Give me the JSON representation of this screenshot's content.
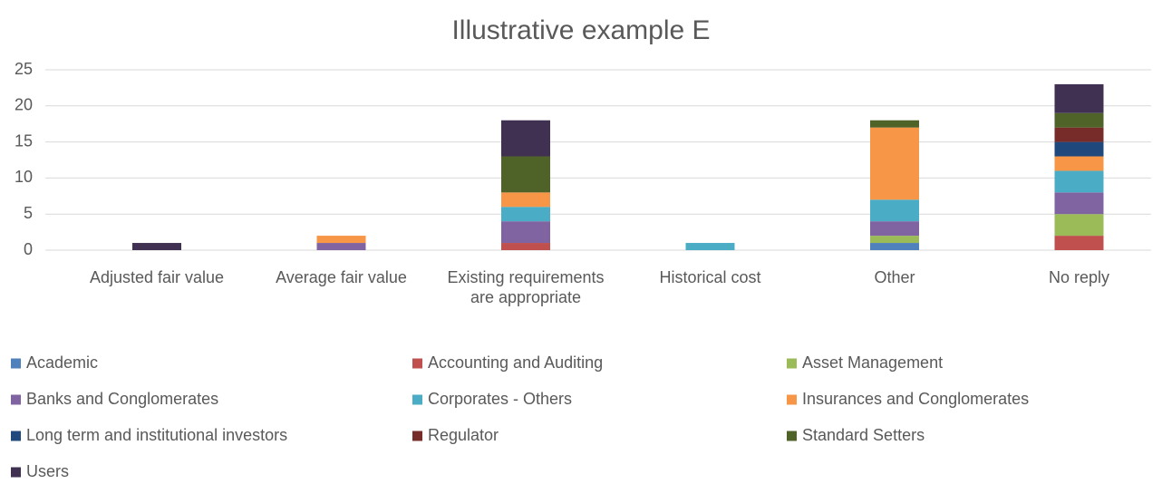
{
  "chart_data": {
    "type": "stacked_bar",
    "title": "Illustrative example E",
    "categories": [
      "Adjusted fair value",
      "Average fair value",
      "Existing requirements are appropriate",
      "Historical cost",
      "Other",
      "No reply"
    ],
    "series": [
      {
        "name": "Academic",
        "color": "#4f81bd",
        "values": [
          0,
          0,
          0,
          0,
          1,
          0
        ]
      },
      {
        "name": "Accounting and Auditing",
        "color": "#c0504d",
        "values": [
          0,
          0,
          1,
          0,
          0,
          2
        ]
      },
      {
        "name": "Asset Management",
        "color": "#9bbb59",
        "values": [
          0,
          0,
          0,
          0,
          1,
          3
        ]
      },
      {
        "name": "Banks and Conglomerates",
        "color": "#8064a2",
        "values": [
          0,
          1,
          3,
          0,
          2,
          3
        ]
      },
      {
        "name": "Corporates - Others",
        "color": "#4bacc6",
        "values": [
          0,
          0,
          2,
          1,
          3,
          3
        ]
      },
      {
        "name": "Insurances and Conglomerates",
        "color": "#f79646",
        "values": [
          0,
          1,
          2,
          0,
          10,
          2
        ]
      },
      {
        "name": "Long term and institutional investors",
        "color": "#1f497d",
        "values": [
          0,
          0,
          0,
          0,
          0,
          2
        ]
      },
      {
        "name": "Regulator",
        "color": "#772c2a",
        "values": [
          0,
          0,
          0,
          0,
          0,
          2
        ]
      },
      {
        "name": "Standard Setters",
        "color": "#4f6228",
        "values": [
          0,
          0,
          5,
          0,
          1,
          2
        ]
      },
      {
        "name": "Users",
        "color": "#403152",
        "values": [
          1,
          0,
          5,
          0,
          0,
          4
        ]
      }
    ],
    "ylim": [
      0,
      25
    ],
    "yticks": [
      0,
      5,
      10,
      15,
      20,
      25
    ],
    "grid": true,
    "legend": "bottom"
  }
}
